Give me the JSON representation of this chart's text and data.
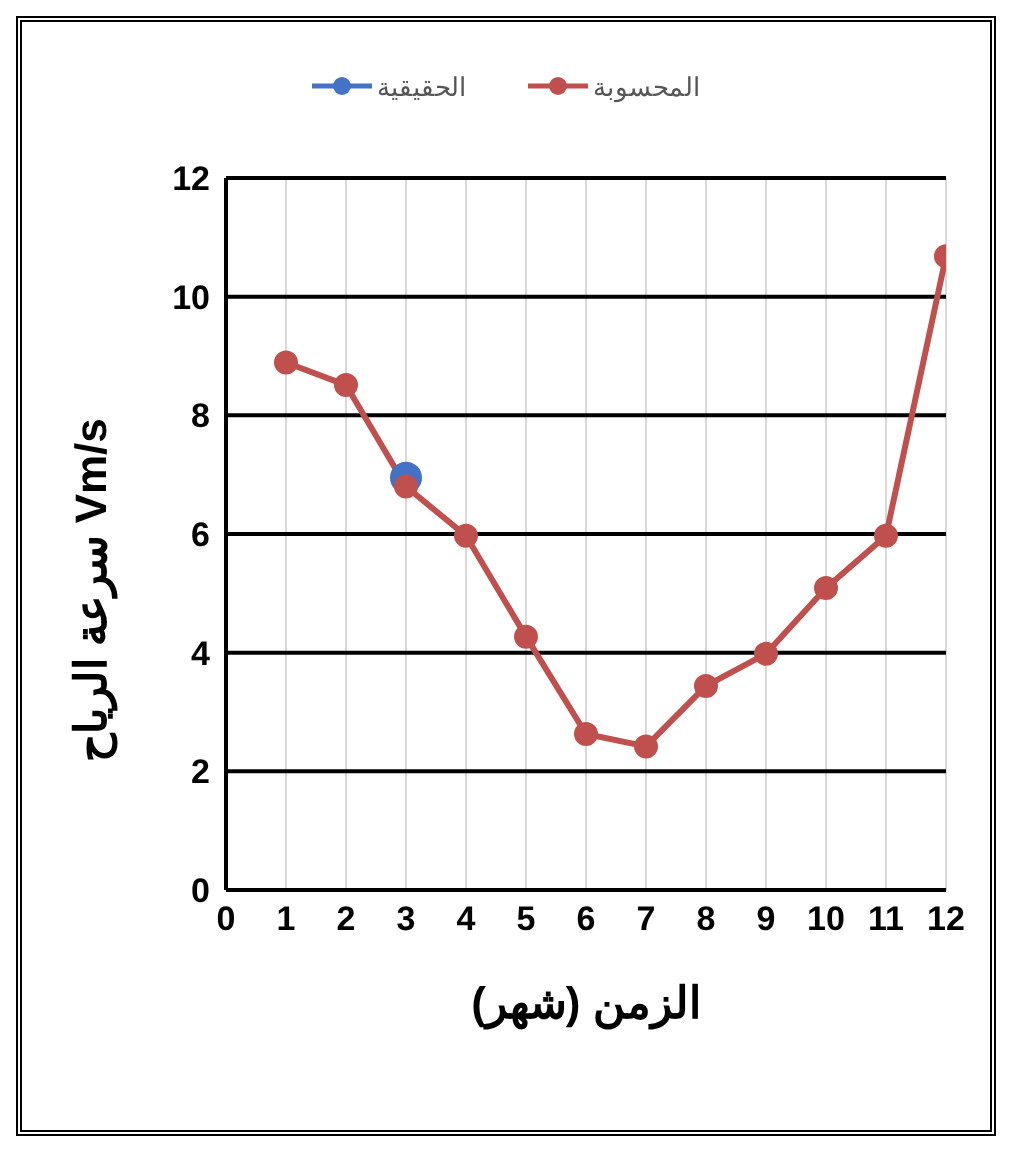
{
  "chart_data": {
    "type": "line",
    "xlabel": "الزمن (شهر)",
    "ylabel": "سرعة الرياح Vm/s",
    "x": [
      1,
      2,
      3,
      4,
      5,
      6,
      7,
      8,
      9,
      10,
      11,
      12
    ],
    "series": [
      {
        "name": "الحقيقية",
        "color": "#4472c4",
        "values": [
          null,
          null,
          6.95,
          null,
          null,
          null,
          null,
          null,
          null,
          null,
          null,
          null
        ]
      },
      {
        "name": "المحسوبة",
        "color": "#c0504d",
        "values": [
          8.89,
          8.51,
          6.8,
          5.97,
          4.27,
          2.63,
          2.42,
          3.44,
          3.98,
          5.09,
          5.97,
          10.68
        ]
      }
    ],
    "xlim": [
      0,
      12
    ],
    "xticks": [
      0,
      1,
      2,
      3,
      4,
      5,
      6,
      7,
      8,
      9,
      10,
      11,
      12
    ],
    "ylim": [
      0,
      12
    ],
    "yticks": [
      0,
      2,
      4,
      6,
      8,
      10,
      12
    ],
    "grid": true,
    "legend": "top",
    "marker": "circle",
    "line_style": "solid"
  }
}
